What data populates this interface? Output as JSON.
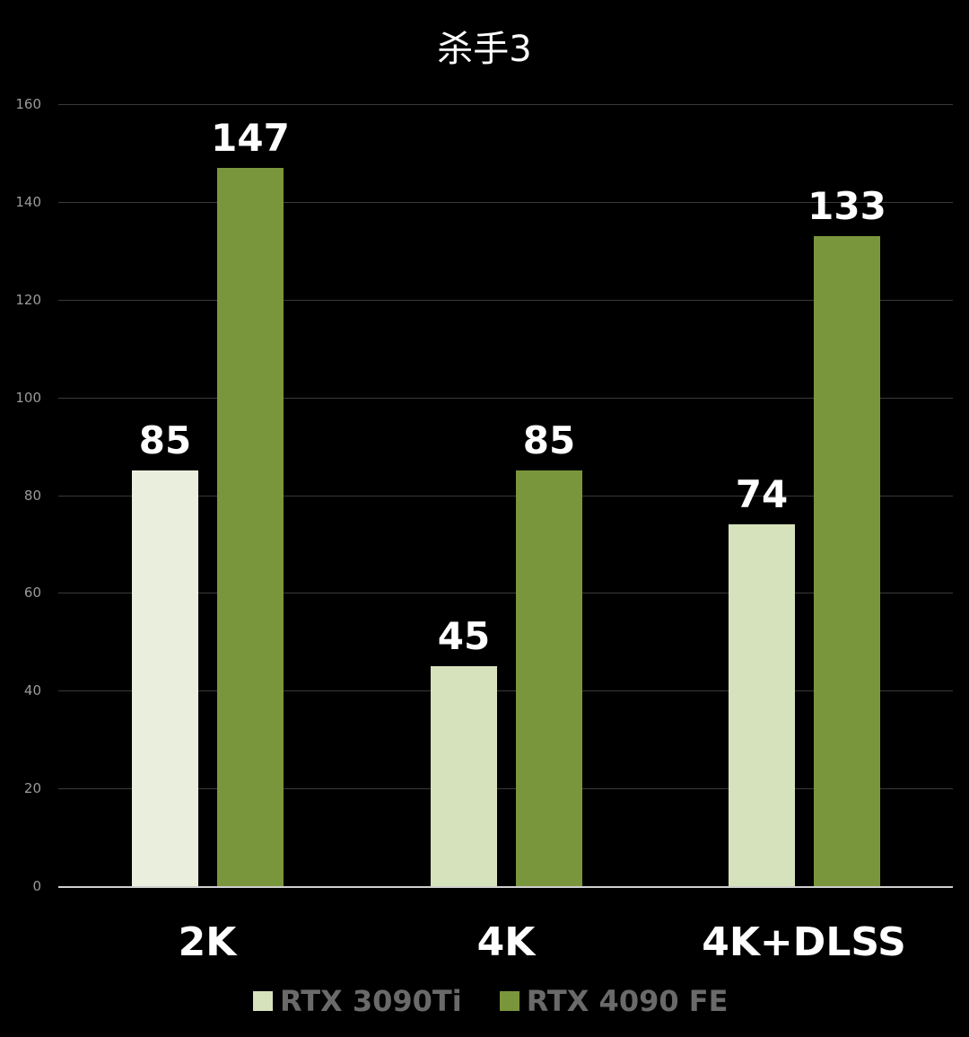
{
  "chart_data": {
    "type": "bar",
    "title": "杀手3",
    "categories": [
      "2K",
      "4K",
      "4K+DLSS"
    ],
    "series": [
      {
        "name": "RTX 3090Ti",
        "values": [
          85,
          45,
          74
        ],
        "color": "#d6e2bc"
      },
      {
        "name": "RTX 4090 FE",
        "values": [
          147,
          85,
          133
        ],
        "color": "#7a963c"
      }
    ],
    "xlabel": "",
    "ylabel": "",
    "ylim": [
      0,
      160
    ],
    "yticks": [
      0,
      20,
      40,
      60,
      80,
      100,
      120,
      140,
      160
    ],
    "grid": true,
    "legend_position": "bottom",
    "data_labels": true
  },
  "colors": {
    "background": "#000000",
    "bar_3090ti_first": "#eaeedc",
    "bar_3090ti": "#d6e2bc",
    "bar_4090": "#7a963c",
    "gridline": "#3a3a3a",
    "tick_text": "#9a9a9a",
    "legend_text": "#6a6a6a"
  }
}
